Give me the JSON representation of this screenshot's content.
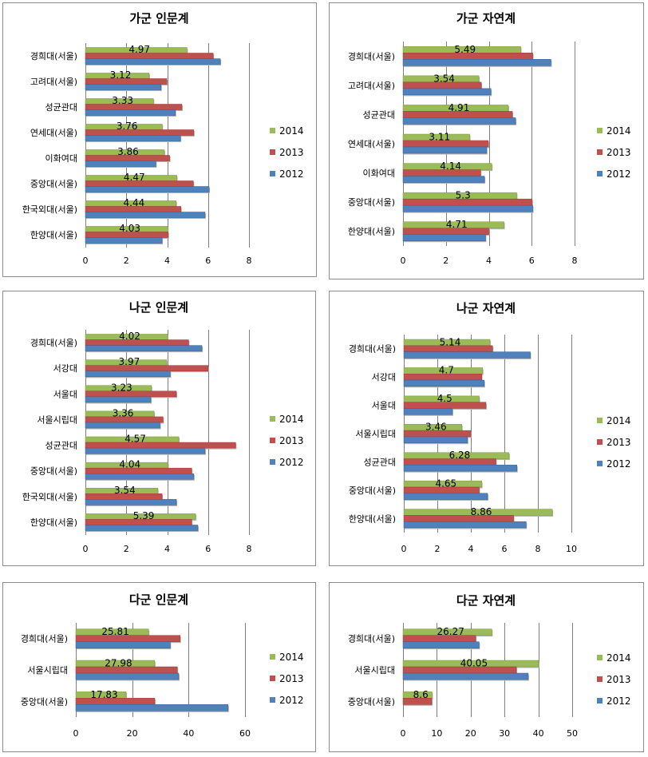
{
  "legend": [
    "2014",
    "2013",
    "2012"
  ],
  "colors": {
    "s2014": "#9bbb59",
    "s2013": "#c0504d",
    "s2012": "#4f81bd"
  },
  "chart_data": [
    {
      "type": "bar",
      "title": "가군 인문계",
      "categories": [
        "경희대(서울)",
        "고려대(서울)",
        "성균관대",
        "연세대(서울)",
        "이화여대",
        "중앙대(서울)",
        "한국외대(서울)",
        "한양대(서울)"
      ],
      "xlim": [
        0,
        8
      ],
      "ticks": [
        0,
        2,
        4,
        6,
        8
      ],
      "series": [
        {
          "name": "2014",
          "values": [
            4.97,
            3.12,
            3.33,
            3.76,
            3.86,
            4.47,
            4.44,
            4.03
          ]
        },
        {
          "name": "2013",
          "values": [
            6.25,
            3.98,
            4.72,
            5.3,
            4.12,
            5.28,
            4.67,
            4.05
          ]
        },
        {
          "name": "2012",
          "values": [
            6.6,
            3.7,
            4.4,
            4.65,
            3.45,
            6.05,
            5.85,
            3.75
          ]
        }
      ],
      "data_labels": [
        "4.97",
        "3.12",
        "3.33",
        "3.76",
        "3.86",
        "4.47",
        "4.44",
        "4.03"
      ]
    },
    {
      "type": "bar",
      "title": "가군 자연계",
      "categories": [
        "경희대(서울)",
        "고려대(서울)",
        "성균관대",
        "연세대(서울)",
        "이화여대",
        "중앙대(서울)",
        "한양대(서울)"
      ],
      "xlim": [
        0,
        8
      ],
      "ticks": [
        0,
        2,
        4,
        6,
        8
      ],
      "series": [
        {
          "name": "2014",
          "values": [
            5.49,
            3.54,
            4.91,
            3.11,
            4.14,
            5.3,
            4.71
          ]
        },
        {
          "name": "2013",
          "values": [
            6.05,
            3.65,
            5.1,
            3.98,
            3.62,
            6.02,
            4.0
          ]
        },
        {
          "name": "2012",
          "values": [
            6.9,
            4.1,
            5.25,
            3.9,
            3.8,
            6.05,
            3.85
          ]
        }
      ],
      "data_labels": [
        "5.49",
        "3.54",
        "4.91",
        "3.11",
        "4.14",
        "5.3",
        "4.71"
      ]
    },
    {
      "type": "bar",
      "title": "나군 인문계",
      "categories": [
        "경희대(서울)",
        "서강대",
        "서울대",
        "서울시립대",
        "성균관대",
        "중앙대(서울)",
        "한국외대(서울)",
        "한양대(서울)"
      ],
      "xlim": [
        0,
        8
      ],
      "ticks": [
        0,
        2,
        4,
        6,
        8
      ],
      "series": [
        {
          "name": "2014",
          "values": [
            4.02,
            3.97,
            3.23,
            3.36,
            4.57,
            4.04,
            3.54,
            5.39
          ]
        },
        {
          "name": "2013",
          "values": [
            5.05,
            6.0,
            4.45,
            3.8,
            7.35,
            5.2,
            3.75,
            5.2
          ]
        },
        {
          "name": "2012",
          "values": [
            5.7,
            4.15,
            3.2,
            3.65,
            5.85,
            5.3,
            4.45,
            5.5
          ]
        }
      ],
      "data_labels": [
        "4.02",
        "3.97",
        "3.23",
        "3.36",
        "4.57",
        "4.04",
        "3.54",
        "5.39"
      ]
    },
    {
      "type": "bar",
      "title": "나군 자연계",
      "categories": [
        "경희대(서울)",
        "서강대",
        "서울대",
        "서울시립대",
        "성균관대",
        "중앙대(서울)",
        "한양대(서울)"
      ],
      "xlim": [
        0,
        10
      ],
      "ticks": [
        0,
        2,
        4,
        6,
        8,
        10
      ],
      "series": [
        {
          "name": "2014",
          "values": [
            5.14,
            4.7,
            4.5,
            3.46,
            6.28,
            4.65,
            8.86
          ]
        },
        {
          "name": "2013",
          "values": [
            5.3,
            4.65,
            4.9,
            4.0,
            5.5,
            4.5,
            6.55
          ]
        },
        {
          "name": "2012",
          "values": [
            7.55,
            4.8,
            2.9,
            3.8,
            6.75,
            5.0,
            7.3
          ]
        }
      ],
      "data_labels": [
        "5.14",
        "4.7",
        "4.5",
        "3.46",
        "6.28",
        "4.65",
        "8.86"
      ]
    },
    {
      "type": "bar",
      "title": "다군 인문계",
      "categories": [
        "경희대(서울)",
        "서울시립대",
        "중앙대(서울)"
      ],
      "xlim": [
        0,
        60
      ],
      "ticks": [
        0,
        20,
        40,
        60
      ],
      "series": [
        {
          "name": "2014",
          "values": [
            25.81,
            27.98,
            17.83
          ]
        },
        {
          "name": "2013",
          "values": [
            37.0,
            36.0,
            28.0
          ]
        },
        {
          "name": "2012",
          "values": [
            33.5,
            36.5,
            54.0
          ]
        }
      ],
      "data_labels": [
        "25.81",
        "27.98",
        "17.83"
      ]
    },
    {
      "type": "bar",
      "title": "다군 자연계",
      "categories": [
        "경희대(서울)",
        "서울시립대",
        "중앙대(서울)"
      ],
      "xlim": [
        0,
        50
      ],
      "ticks": [
        0,
        10,
        20,
        30,
        40,
        50
      ],
      "series": [
        {
          "name": "2014",
          "values": [
            26.27,
            40.05,
            8.6
          ]
        },
        {
          "name": "2013",
          "values": [
            21.5,
            33.5,
            8.5
          ]
        },
        {
          "name": "2012",
          "values": [
            22.5,
            37.0,
            0
          ]
        }
      ],
      "data_labels": [
        "26.27",
        "40.05",
        "8.6"
      ]
    }
  ]
}
